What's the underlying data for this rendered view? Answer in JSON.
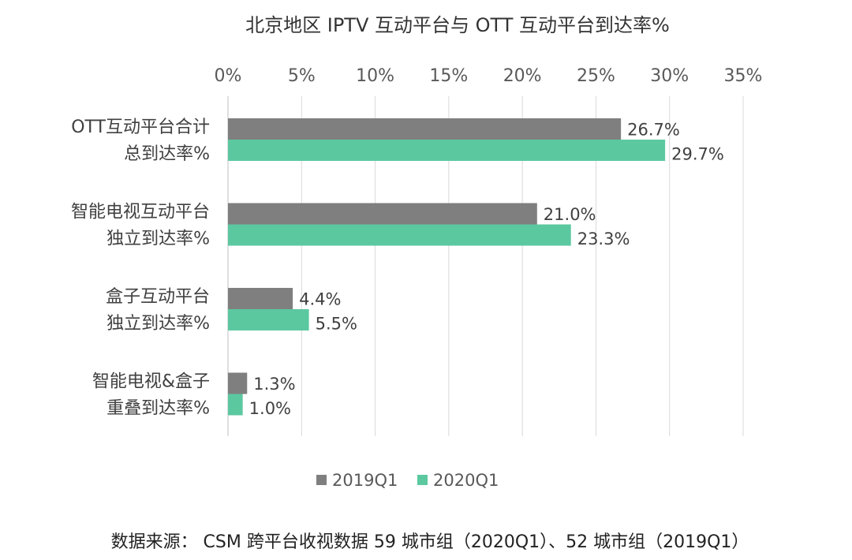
{
  "chart_data": {
    "type": "bar",
    "orientation": "horizontal",
    "title": "北京地区 IPTV 互动平台与 OTT 互动平台到达率%",
    "xlabel": "",
    "ylabel": "",
    "xlim": [
      0,
      35
    ],
    "ticks": [
      0,
      5,
      10,
      15,
      20,
      25,
      30,
      35
    ],
    "tick_labels": [
      "0%",
      "5%",
      "10%",
      "15%",
      "20%",
      "25%",
      "30%",
      "35%"
    ],
    "categories": [
      [
        "OTT互动平台合计",
        "总到达率%"
      ],
      [
        "智能电视互动平台",
        "独立到达率%"
      ],
      [
        "盒子互动平台",
        "独立到达率%"
      ],
      [
        "智能电视&盒子",
        "重叠到达率%"
      ]
    ],
    "series": [
      {
        "name": "2019Q1",
        "color": "#7f7f7f",
        "values": [
          26.7,
          21.0,
          4.4,
          1.3
        ],
        "labels": [
          "26.7%",
          "21.0%",
          "4.4%",
          "1.3%"
        ]
      },
      {
        "name": "2020Q1",
        "color": "#5bc8a0",
        "values": [
          29.7,
          23.3,
          5.5,
          1.0
        ],
        "labels": [
          "29.7%",
          "23.3%",
          "5.5%",
          "1.0%"
        ]
      }
    ],
    "gridlines": true,
    "axis_position": "top",
    "legend_position": "bottom"
  },
  "source_note": "数据来源：  CSM 跨平台收视数据  59 城市组（2020Q1）、52 城市组（2019Q1）"
}
